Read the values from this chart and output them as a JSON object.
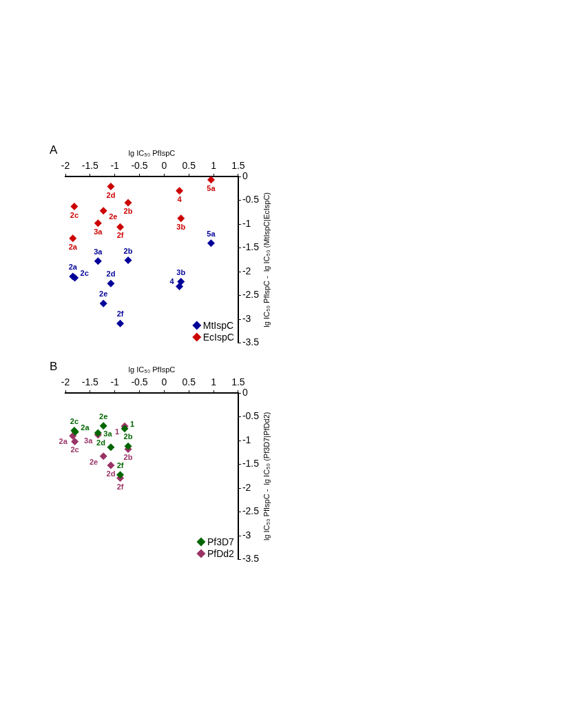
{
  "chart_data": [
    {
      "type": "scatter",
      "title": "A",
      "xlabel": "lg IC₅₀ PfIspC",
      "ylabel": "lg IC₅₀ PfIspC -  lg IC₅₀ (MtIspC|EcIspC)",
      "xlim": [
        -2,
        1.5
      ],
      "xticks": [
        -2,
        -1.5,
        -1,
        -0.5,
        0,
        0.5,
        1,
        1.5
      ],
      "ylim": [
        -3.5,
        0
      ],
      "yticks": [
        0,
        -0.5,
        -1,
        -1.5,
        -2,
        -2.5,
        -3,
        -3.5
      ],
      "grid": false,
      "legend": "bottom right",
      "marker": "diamond",
      "series": [
        {
          "name": "MtIspC",
          "color": "#000099",
          "x": [
            0.95,
            -1.34,
            -0.73,
            -1.85,
            -1.81,
            -1.08,
            0.34,
            0.31,
            -1.23,
            -0.89
          ],
          "values": [
            -1.4,
            -1.78,
            -1.76,
            -2.1,
            -2.13,
            -2.25,
            -2.21,
            -2.31,
            -2.67,
            -3.09
          ]
        },
        {
          "name": "EcIspC",
          "color": "#cc0000",
          "x": [
            0.95,
            -1.08,
            0.31,
            -0.73,
            -1.82,
            -1.23,
            0.34,
            -1.34,
            -0.89,
            -1.85
          ],
          "values": [
            -0.07,
            -0.21,
            -0.3,
            -0.55,
            -0.63,
            -0.72,
            -0.88,
            -0.98,
            -1.06,
            -1.3
          ]
        }
      ],
      "annotations": [
        {
          "text": "5a",
          "x": 0.95,
          "y": -1.4
        },
        {
          "text": "3a",
          "x": -1.34,
          "y": -1.78
        },
        {
          "text": "2b",
          "x": -0.73,
          "y": -1.76
        },
        {
          "text": "2a",
          "x": -1.85,
          "y": -2.1
        },
        {
          "text": "2c",
          "x": -1.81,
          "y": -2.13
        },
        {
          "text": "2d",
          "x": -1.08,
          "y": -2.25
        },
        {
          "text": "3b",
          "x": 0.34,
          "y": -2.21
        },
        {
          "text": "4",
          "x": 0.31,
          "y": -2.31
        },
        {
          "text": "2e",
          "x": -1.23,
          "y": -2.67
        },
        {
          "text": "2f",
          "x": -0.89,
          "y": -3.09
        },
        {
          "text": "5a",
          "x": 0.95,
          "y": -0.07
        },
        {
          "text": "2d",
          "x": -1.08,
          "y": -0.21
        },
        {
          "text": "4",
          "x": 0.31,
          "y": -0.3
        },
        {
          "text": "2b",
          "x": -0.73,
          "y": -0.55
        },
        {
          "text": "2c",
          "x": -1.82,
          "y": -0.63
        },
        {
          "text": "2e",
          "x": -1.23,
          "y": -0.72
        },
        {
          "text": "3b",
          "x": 0.34,
          "y": -0.88
        },
        {
          "text": "3a",
          "x": -1.34,
          "y": -0.98
        },
        {
          "text": "2f",
          "x": -0.89,
          "y": -1.06
        },
        {
          "text": "2a",
          "x": -1.85,
          "y": -1.3
        }
      ]
    },
    {
      "type": "scatter",
      "title": "B",
      "xlabel": "lg IC₅₀ PfIspC",
      "ylabel": "lg IC₅₀ PfIspC -  lg IC₅₀ (Pf3D7|PfDd2)",
      "xlim": [
        -2,
        1.5
      ],
      "xticks": [
        -2,
        -1.5,
        -1,
        -0.5,
        0,
        0.5,
        1,
        1.5
      ],
      "ylim": [
        -3.5,
        0
      ],
      "yticks": [
        0,
        -0.5,
        -1,
        -1.5,
        -2,
        -2.5,
        -3,
        -3.5
      ],
      "grid": false,
      "legend": "bottom right",
      "marker": "diamond",
      "series": [
        {
          "name": "Pf3D7",
          "color": "#006600",
          "x": [
            -1.82,
            -1.8,
            -1.23,
            -1.34,
            -0.8,
            -1.08,
            -0.73,
            -0.89
          ],
          "values": [
            -0.79,
            -0.82,
            -0.69,
            -0.84,
            -0.75,
            -1.14,
            -1.12,
            -1.72
          ]
        },
        {
          "name": "PfDd2",
          "color": "#993366",
          "x": [
            -0.8,
            -1.85,
            -1.34,
            -1.81,
            -0.73,
            -1.23,
            -1.08,
            -0.89
          ],
          "values": [
            -0.7,
            -0.9,
            -0.88,
            -1.02,
            -1.18,
            -1.33,
            -1.52,
            -1.79
          ]
        }
      ],
      "annotations": [
        {
          "text": "2c",
          "x": -1.82,
          "y": -0.79
        },
        {
          "text": "2a",
          "x": -1.8,
          "y": -0.82
        },
        {
          "text": "2e",
          "x": -1.23,
          "y": -0.69
        },
        {
          "text": "3a",
          "x": -1.34,
          "y": -0.84
        },
        {
          "text": "1",
          "x": -0.8,
          "y": -0.75
        },
        {
          "text": "2d",
          "x": -1.08,
          "y": -1.14
        },
        {
          "text": "2b",
          "x": -0.73,
          "y": -1.12
        },
        {
          "text": "2f",
          "x": -0.89,
          "y": -1.72
        },
        {
          "text": "1",
          "x": -0.8,
          "y": -0.7
        },
        {
          "text": "2a",
          "x": -1.85,
          "y": -0.9
        },
        {
          "text": "3a",
          "x": -1.34,
          "y": -0.88
        },
        {
          "text": "2c",
          "x": -1.81,
          "y": -1.02
        },
        {
          "text": "2b",
          "x": -0.73,
          "y": -1.18
        },
        {
          "text": "2e",
          "x": -1.23,
          "y": -1.33
        },
        {
          "text": "2d",
          "x": -1.08,
          "y": -1.52
        },
        {
          "text": "2f",
          "x": -0.89,
          "y": -1.79
        }
      ]
    }
  ]
}
